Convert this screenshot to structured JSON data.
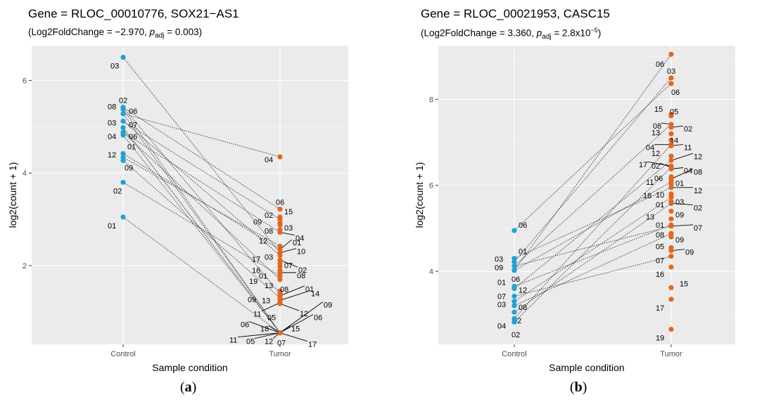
{
  "chart_data": [
    {
      "type": "scatter",
      "title_prefix": "Gene = ",
      "title": "RLOC_00010776, SOX21−AS1",
      "subtitle": {
        "prefix": "(Log2FoldChange = −2.970, ",
        "p_label": "p",
        "p_sub": "adj",
        "value_text": " = 0.003)",
        "sup": ""
      },
      "xlabel": "Sample condition",
      "ylabel": "log2(count + 1)",
      "panel_label": "a",
      "categories": [
        "Control",
        "Tumor"
      ],
      "ylim": [
        0.3,
        6.75
      ],
      "yticks": [
        2,
        4,
        6
      ],
      "colors": {
        "Control": "#1BA3D8",
        "Tumor": "#E4661F"
      },
      "control": [
        {
          "id": "03",
          "y": 6.5
        },
        {
          "id": "02",
          "y": 5.42
        },
        {
          "id": "08",
          "y": 5.38
        },
        {
          "id": "06",
          "y": 5.28
        },
        {
          "id": "03",
          "y": 5.12
        },
        {
          "id": "07",
          "y": 4.98
        },
        {
          "id": "04",
          "y": 4.88
        },
        {
          "id": "06",
          "y": 4.82
        },
        {
          "id": "01",
          "y": 4.42
        },
        {
          "id": "12",
          "y": 4.34
        },
        {
          "id": "09",
          "y": 4.27
        },
        {
          "id": "02",
          "y": 3.8
        },
        {
          "id": "01",
          "y": 3.05
        }
      ],
      "tumor": [
        {
          "id": "04",
          "y": 4.35
        },
        {
          "id": "06",
          "y": 3.22
        },
        {
          "id": "15",
          "y": 3.05
        },
        {
          "id": "02",
          "y": 3.0
        },
        {
          "id": "09",
          "y": 2.92
        },
        {
          "id": "03",
          "y": 2.88
        },
        {
          "id": "08",
          "y": 2.78
        },
        {
          "id": "04",
          "y": 2.72
        },
        {
          "id": "12",
          "y": 2.42
        },
        {
          "id": "01",
          "y": 2.35
        },
        {
          "id": "10",
          "y": 2.28
        },
        {
          "id": "03",
          "y": 2.22
        },
        {
          "id": "02",
          "y": 2.12
        },
        {
          "id": "17",
          "y": 2.05
        },
        {
          "id": "07",
          "y": 1.98
        },
        {
          "id": "16",
          "y": 1.9
        },
        {
          "id": "08",
          "y": 1.85
        },
        {
          "id": "01",
          "y": 1.78
        },
        {
          "id": "19",
          "y": 1.7
        },
        {
          "id": "13",
          "y": 1.45
        },
        {
          "id": "08",
          "y": 1.4
        },
        {
          "id": "01",
          "y": 1.35
        },
        {
          "id": "09",
          "y": 1.3
        },
        {
          "id": "13",
          "y": 1.28
        },
        {
          "id": "14",
          "y": 1.25
        },
        {
          "id": "11",
          "y": 1.2
        },
        {
          "id": "12",
          "y": 1.18
        },
        {
          "id": "05",
          "y": 0.55
        },
        {
          "id": "09",
          "y": 0.55
        },
        {
          "id": "06",
          "y": 0.55
        },
        {
          "id": "06",
          "y": 0.55
        },
        {
          "id": "18",
          "y": 0.55
        },
        {
          "id": "15",
          "y": 0.55
        },
        {
          "id": "11",
          "y": 0.55
        },
        {
          "id": "05",
          "y": 0.55
        },
        {
          "id": "12",
          "y": 0.55
        },
        {
          "id": "07",
          "y": 0.55
        },
        {
          "id": "17",
          "y": 0.55
        }
      ]
    },
    {
      "type": "scatter",
      "title_prefix": "Gene = ",
      "title": "RLOC_00021953, CASC15",
      "subtitle": {
        "prefix": "(Log2FoldChange = 3.360, ",
        "p_label": "p",
        "p_sub": "adj",
        "value_text": " = 2.8x10",
        "sup": "−5",
        "suffix": ")"
      },
      "xlabel": "Sample condition",
      "ylabel": "log2(count + 1)",
      "panel_label": "b",
      "categories": [
        "Control",
        "Tumor"
      ],
      "ylim": [
        2.3,
        9.25
      ],
      "yticks": [
        4,
        6,
        8
      ],
      "colors": {
        "Control": "#1BA3D8",
        "Tumor": "#E4661F"
      },
      "control": [
        {
          "id": "06",
          "y": 4.95
        },
        {
          "id": "01",
          "y": 4.3
        },
        {
          "id": "03",
          "y": 4.22
        },
        {
          "id": "09",
          "y": 4.12
        },
        {
          "id": "06",
          "y": 4.02
        },
        {
          "id": "01",
          "y": 3.65
        },
        {
          "id": "12",
          "y": 3.6
        },
        {
          "id": "07",
          "y": 3.42
        },
        {
          "id": "03",
          "y": 3.3
        },
        {
          "id": "08",
          "y": 3.2
        },
        {
          "id": "02",
          "y": 3.05
        },
        {
          "id": "04",
          "y": 2.9
        },
        {
          "id": "02",
          "y": 2.82
        }
      ],
      "tumor": [
        {
          "id": "06",
          "y": 9.05
        },
        {
          "id": "03",
          "y": 8.5
        },
        {
          "id": "06",
          "y": 8.37
        },
        {
          "id": "15",
          "y": 7.65
        },
        {
          "id": "05",
          "y": 7.62
        },
        {
          "id": "08",
          "y": 7.42
        },
        {
          "id": "02",
          "y": 7.35
        },
        {
          "id": "13",
          "y": 7.2
        },
        {
          "id": "14",
          "y": 7.05
        },
        {
          "id": "04",
          "y": 6.95
        },
        {
          "id": "11",
          "y": 6.92
        },
        {
          "id": "12",
          "y": 6.68
        },
        {
          "id": "12",
          "y": 6.58
        },
        {
          "id": "17",
          "y": 6.45
        },
        {
          "id": "02",
          "y": 6.42
        },
        {
          "id": "04",
          "y": 6.38
        },
        {
          "id": "06",
          "y": 6.2
        },
        {
          "id": "08",
          "y": 6.15
        },
        {
          "id": "11",
          "y": 6.08
        },
        {
          "id": "01",
          "y": 6.02
        },
        {
          "id": "12",
          "y": 5.95
        },
        {
          "id": "18",
          "y": 5.8
        },
        {
          "id": "10",
          "y": 5.78
        },
        {
          "id": "03",
          "y": 5.72
        },
        {
          "id": "01",
          "y": 5.62
        },
        {
          "id": "02",
          "y": 5.58
        },
        {
          "id": "13",
          "y": 5.4
        },
        {
          "id": "09",
          "y": 5.22
        },
        {
          "id": "01",
          "y": 5.08
        },
        {
          "id": "07",
          "y": 5.05
        },
        {
          "id": "08",
          "y": 4.88
        },
        {
          "id": "09",
          "y": 4.8
        },
        {
          "id": "05",
          "y": 4.55
        },
        {
          "id": "09",
          "y": 4.48
        },
        {
          "id": "07",
          "y": 4.35
        },
        {
          "id": "16",
          "y": 4.1
        },
        {
          "id": "15",
          "y": 3.62
        },
        {
          "id": "17",
          "y": 3.35
        },
        {
          "id": "19",
          "y": 2.65
        }
      ]
    }
  ]
}
